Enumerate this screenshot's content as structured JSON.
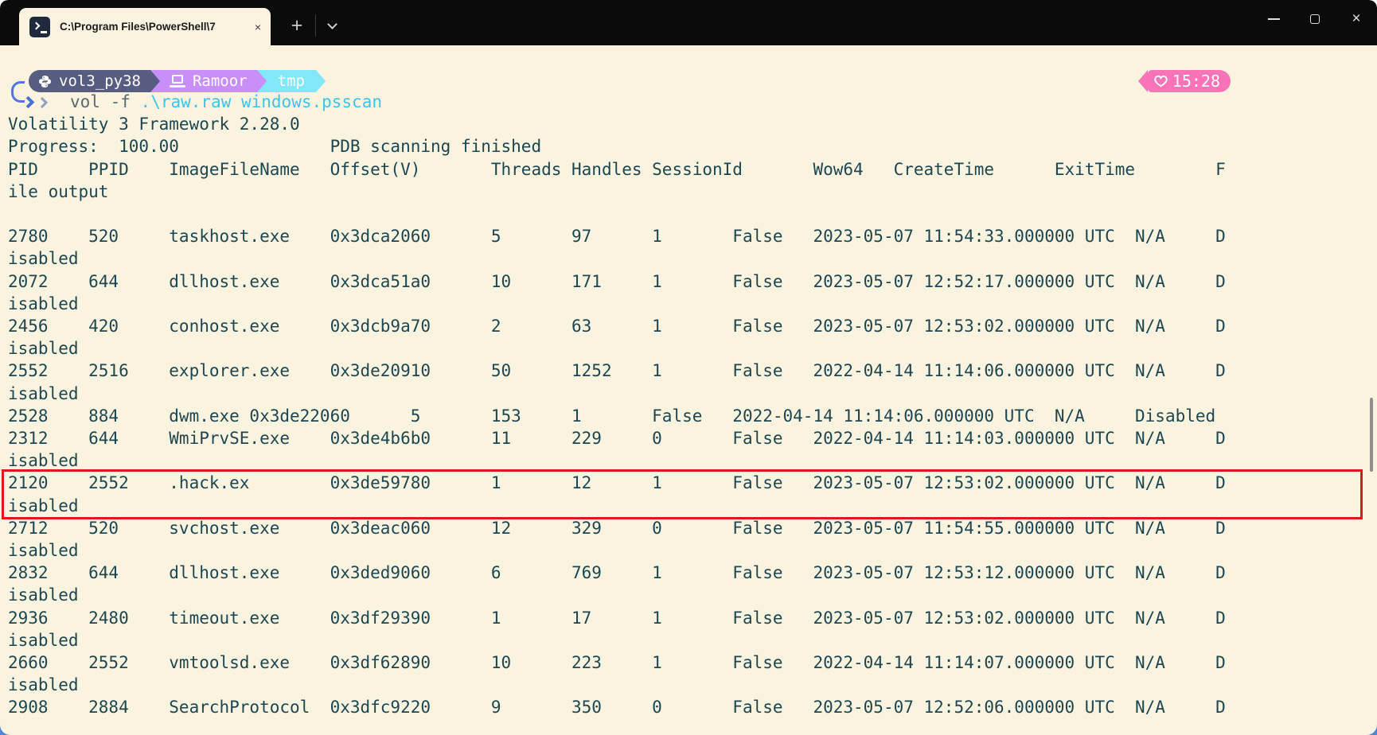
{
  "titlebar": {
    "tab_title": "C:\\Program Files\\PowerShell\\7",
    "tab_close_glyph": "×",
    "new_tab_glyph": "+",
    "close_glyph": "×"
  },
  "prompt": {
    "segments": [
      {
        "icon": "python-icon",
        "label": "vol3_py38",
        "bg": "#575d80"
      },
      {
        "icon": "laptop-icon",
        "label": "Ramoor",
        "bg": "#c78ff7"
      },
      {
        "icon": null,
        "label": "tmp",
        "bg": "#82e7f9"
      }
    ],
    "time": "15:28",
    "time_bg": "#f973b8"
  },
  "command": {
    "program": "vol",
    "flag": "-f",
    "args": ".\\raw.raw windows.psscan"
  },
  "terminal": {
    "version_line": "Volatility 3 Framework 2.28.0",
    "progress_label": "Progress:  100.00",
    "progress_status": "PDB scanning finished",
    "columns": [
      "PID",
      "PPID",
      "ImageFileName",
      "Offset(V)",
      "Threads",
      "Handles",
      "SessionId",
      "Wow64",
      "CreateTime",
      "ExitTime",
      "File output"
    ],
    "wrap_columns": 121,
    "tab_stop": 8,
    "highlight_color": "#da1b1b",
    "rows": [
      {
        "pid": "2780",
        "ppid": "520",
        "name": "taskhost.exe",
        "offset": "0x3dca2060",
        "threads": "5",
        "handles": "97",
        "session": "1",
        "wow64": "False",
        "created": "2023-05-07 11:54:33.000000 UTC",
        "exit": "N/A",
        "file_output": "Disabled"
      },
      {
        "pid": "2072",
        "ppid": "644",
        "name": "dllhost.exe",
        "offset": "0x3dca51a0",
        "threads": "10",
        "handles": "171",
        "session": "1",
        "wow64": "False",
        "created": "2023-05-07 12:52:17.000000 UTC",
        "exit": "N/A",
        "file_output": "Disabled"
      },
      {
        "pid": "2456",
        "ppid": "420",
        "name": "conhost.exe",
        "offset": "0x3dcb9a70",
        "threads": "2",
        "handles": "63",
        "session": "1",
        "wow64": "False",
        "created": "2023-05-07 12:53:02.000000 UTC",
        "exit": "N/A",
        "file_output": "Disabled"
      },
      {
        "pid": "2552",
        "ppid": "2516",
        "name": "explorer.exe",
        "offset": "0x3de20910",
        "threads": "50",
        "handles": "1252",
        "session": "1",
        "wow64": "False",
        "created": "2022-04-14 11:14:06.000000 UTC",
        "exit": "N/A",
        "file_output": "Disabled"
      },
      {
        "pid": "2528",
        "ppid": "884",
        "name": "dwm.exe",
        "offset": "0x3de22060",
        "threads": "5",
        "handles": "153",
        "session": "1",
        "wow64": "False",
        "created": "2022-04-14 11:14:06.000000 UTC",
        "exit": "N/A",
        "file_output": "Disabled"
      },
      {
        "pid": "2312",
        "ppid": "644",
        "name": "WmiPrvSE.exe",
        "offset": "0x3de4b6b0",
        "threads": "11",
        "handles": "229",
        "session": "0",
        "wow64": "False",
        "created": "2022-04-14 11:14:03.000000 UTC",
        "exit": "N/A",
        "file_output": "Disabled"
      },
      {
        "pid": "2120",
        "ppid": "2552",
        "name": ".hack.ex",
        "offset": "0x3de59780",
        "threads": "1",
        "handles": "12",
        "session": "1",
        "wow64": "False",
        "created": "2023-05-07 12:53:02.000000 UTC",
        "exit": "N/A",
        "file_output": "Disabled",
        "highlighted": true
      },
      {
        "pid": "2712",
        "ppid": "520",
        "name": "svchost.exe",
        "offset": "0x3deac060",
        "threads": "12",
        "handles": "329",
        "session": "0",
        "wow64": "False",
        "created": "2023-05-07 11:54:55.000000 UTC",
        "exit": "N/A",
        "file_output": "Disabled"
      },
      {
        "pid": "2832",
        "ppid": "644",
        "name": "dllhost.exe",
        "offset": "0x3ded9060",
        "threads": "6",
        "handles": "769",
        "session": "1",
        "wow64": "False",
        "created": "2023-05-07 12:53:12.000000 UTC",
        "exit": "N/A",
        "file_output": "Disabled"
      },
      {
        "pid": "2936",
        "ppid": "2480",
        "name": "timeout.exe",
        "offset": "0x3df29390",
        "threads": "1",
        "handles": "17",
        "session": "1",
        "wow64": "False",
        "created": "2023-05-07 12:53:02.000000 UTC",
        "exit": "N/A",
        "file_output": "Disabled"
      },
      {
        "pid": "2660",
        "ppid": "2552",
        "name": "vmtoolsd.exe",
        "offset": "0x3df62890",
        "threads": "10",
        "handles": "223",
        "session": "1",
        "wow64": "False",
        "created": "2022-04-14 11:14:07.000000 UTC",
        "exit": "N/A",
        "file_output": "Disabled"
      },
      {
        "pid": "2908",
        "ppid": "2884",
        "name": "SearchProtocol",
        "offset": "0x3dfc9220",
        "threads": "9",
        "handles": "350",
        "session": "0",
        "wow64": "False",
        "created": "2023-05-07 12:52:06.000000 UTC",
        "exit": "N/A",
        "file_output": "Disabled",
        "hide_wrap": true
      }
    ]
  }
}
